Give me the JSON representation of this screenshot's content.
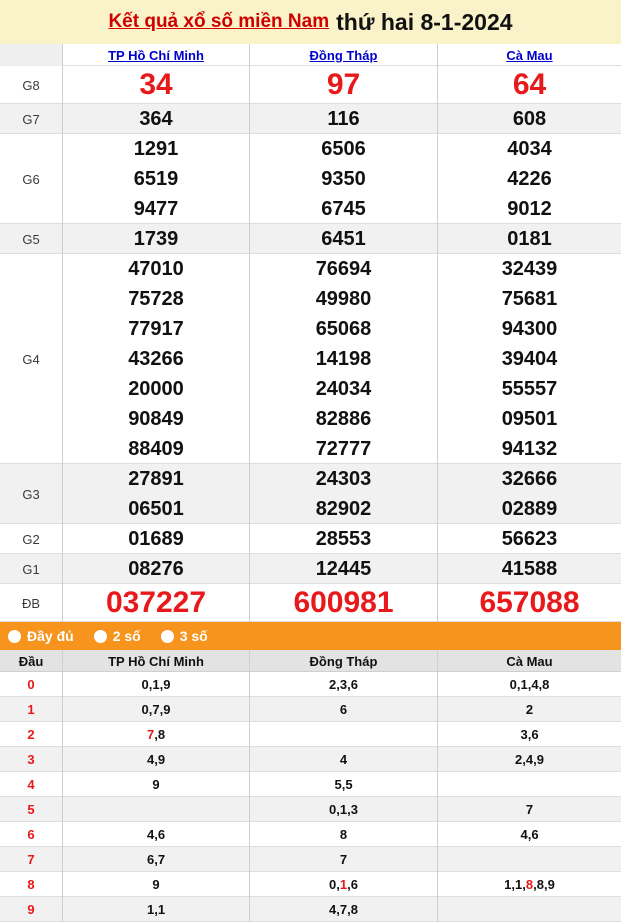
{
  "title": {
    "link": "Kết quả xổ số miền Nam",
    "date": "thứ hai 8-1-2024"
  },
  "colors": {
    "page_background": "#FAF3C9",
    "accent_orange": "#F7941E",
    "prize_red": "#E8191B",
    "link_blue": "#0000CC",
    "alt_row_gray": "#F1F1F1"
  },
  "results": {
    "columns": [
      "TP Hồ Chí Minh",
      "Đồng Tháp",
      "Cà Mau"
    ],
    "groups": [
      {
        "label": "G8",
        "type": "big-red",
        "cols": [
          [
            "34"
          ],
          [
            "97"
          ],
          [
            "64"
          ]
        ]
      },
      {
        "label": "G7",
        "type": "normal",
        "cols": [
          [
            "364"
          ],
          [
            "116"
          ],
          [
            "608"
          ]
        ]
      },
      {
        "label": "G6",
        "type": "normal",
        "cols": [
          [
            "1291",
            "6519",
            "9477"
          ],
          [
            "6506",
            "9350",
            "6745"
          ],
          [
            "4034",
            "4226",
            "9012"
          ]
        ]
      },
      {
        "label": "G5",
        "type": "normal",
        "cols": [
          [
            "1739"
          ],
          [
            "6451"
          ],
          [
            "0181"
          ]
        ]
      },
      {
        "label": "G4",
        "type": "normal",
        "cols": [
          [
            "47010",
            "75728",
            "77917",
            "43266",
            "20000",
            "90849",
            "88409"
          ],
          [
            "76694",
            "49980",
            "65068",
            "14198",
            "24034",
            "82886",
            "72777"
          ],
          [
            "32439",
            "75681",
            "94300",
            "39404",
            "55557",
            "09501",
            "94132"
          ]
        ]
      },
      {
        "label": "G3",
        "type": "normal",
        "cols": [
          [
            "27891",
            "06501"
          ],
          [
            "24303",
            "82902"
          ],
          [
            "32666",
            "02889"
          ]
        ]
      },
      {
        "label": "G2",
        "type": "normal",
        "cols": [
          [
            "01689"
          ],
          [
            "28553"
          ],
          [
            "56623"
          ]
        ]
      },
      {
        "label": "G1",
        "type": "normal",
        "cols": [
          [
            "08276"
          ],
          [
            "12445"
          ],
          [
            "41588"
          ]
        ]
      },
      {
        "label": "ĐB",
        "type": "big-red",
        "cols": [
          [
            "037227"
          ],
          [
            "600981"
          ],
          [
            "657088"
          ]
        ]
      }
    ]
  },
  "filter_bar": {
    "options": [
      {
        "label": "Đầy đủ",
        "selected": true
      },
      {
        "label": "2 số",
        "selected": false
      },
      {
        "label": "3 số",
        "selected": false
      }
    ]
  },
  "tails": {
    "columns": [
      "Đầu",
      "TP Hồ Chí Minh",
      "Đồng Tháp",
      "Cà Mau"
    ],
    "rows": [
      {
        "digit": "0",
        "cells": [
          {
            "v": "0,1,9",
            "r": -1
          },
          {
            "v": "2,3,6",
            "r": -1
          },
          {
            "v": "0,1,4,8",
            "r": -1
          }
        ]
      },
      {
        "digit": "1",
        "cells": [
          {
            "v": "0,7,9",
            "r": -1
          },
          {
            "v": "6",
            "r": -1
          },
          {
            "v": "2",
            "r": -1
          }
        ]
      },
      {
        "digit": "2",
        "cells": [
          {
            "v": "7,8",
            "r": 0
          },
          {
            "v": "",
            "r": -1
          },
          {
            "v": "3,6",
            "r": -1
          }
        ]
      },
      {
        "digit": "3",
        "cells": [
          {
            "v": "4,9",
            "r": -1
          },
          {
            "v": "4",
            "r": -1
          },
          {
            "v": "2,4,9",
            "r": -1
          }
        ]
      },
      {
        "digit": "4",
        "cells": [
          {
            "v": "9",
            "r": -1
          },
          {
            "v": "5,5",
            "r": -1
          },
          {
            "v": "",
            "r": -1
          }
        ]
      },
      {
        "digit": "5",
        "cells": [
          {
            "v": "",
            "r": -1
          },
          {
            "v": "0,1,3",
            "r": -1
          },
          {
            "v": "7",
            "r": -1
          }
        ]
      },
      {
        "digit": "6",
        "cells": [
          {
            "v": "4,6",
            "r": -1
          },
          {
            "v": "8",
            "r": -1
          },
          {
            "v": "4,6",
            "r": -1
          }
        ]
      },
      {
        "digit": "7",
        "cells": [
          {
            "v": "6,7",
            "r": -1
          },
          {
            "v": "7",
            "r": -1
          },
          {
            "v": "",
            "r": -1
          }
        ]
      },
      {
        "digit": "8",
        "cells": [
          {
            "v": "9",
            "r": -1
          },
          {
            "v": "0,1,6",
            "r": 1
          },
          {
            "v": "1,1,8,8,9",
            "r": 2
          }
        ]
      },
      {
        "digit": "9",
        "cells": [
          {
            "v": "1,1",
            "r": -1
          },
          {
            "v": "4,7,8",
            "r": -1
          },
          {
            "v": "",
            "r": -1
          }
        ]
      }
    ]
  }
}
